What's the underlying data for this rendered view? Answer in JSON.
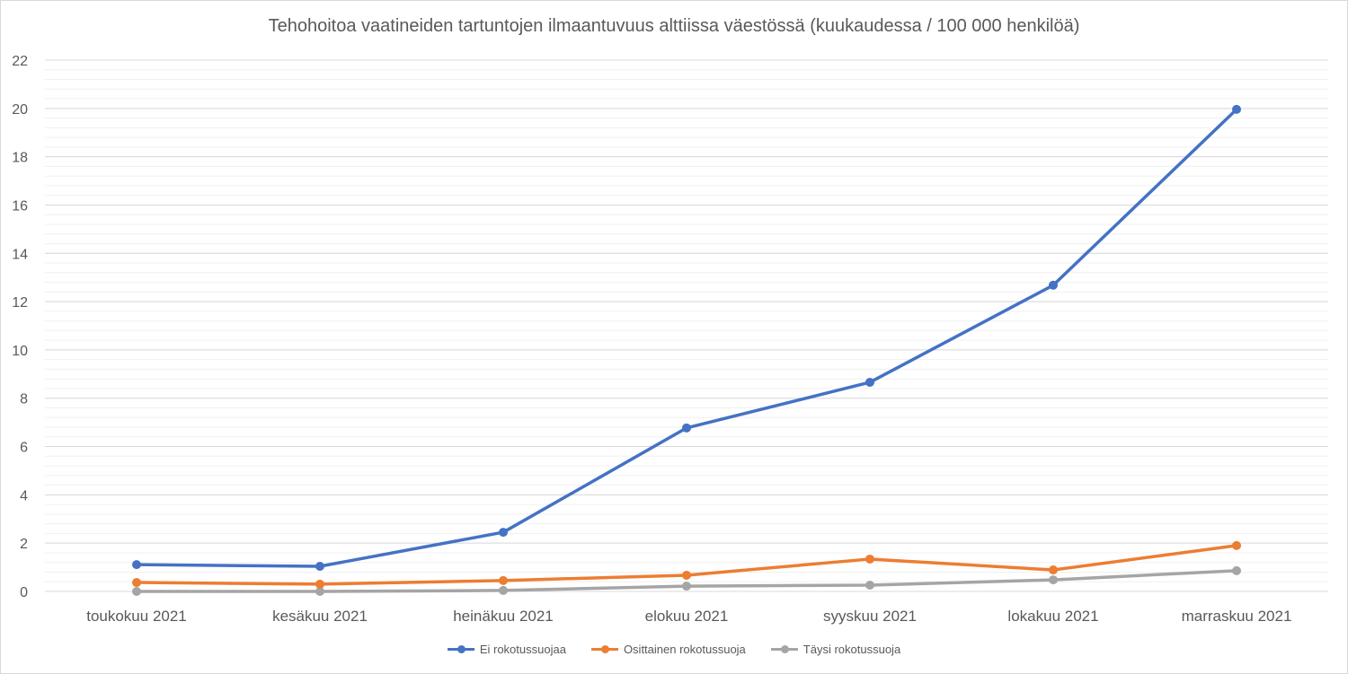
{
  "chart_data": {
    "type": "line",
    "title": "Tehohoitoa vaatineiden tartuntojen ilmaantuvuus alttiissa väestössä (kuukaudessa / 100 000 henkilöä)",
    "categories": [
      "toukokuu 2021",
      "kesäkuu 2021",
      "heinäkuu 2021",
      "elokuu 2021",
      "syyskuu 2021",
      "lokakuu 2021",
      "marraskuu 2021"
    ],
    "ylim": [
      0,
      22
    ],
    "yticks": [
      0,
      2,
      4,
      6,
      8,
      10,
      12,
      14,
      16,
      18,
      20,
      22
    ],
    "grid": true,
    "minor_grid_step": 0.4,
    "legend_position": "bottom",
    "series": [
      {
        "name": "Ei rokotussuojaa",
        "color": "#4472c4",
        "values": [
          1.11,
          1.04,
          2.45,
          6.77,
          8.66,
          12.68,
          19.96
        ]
      },
      {
        "name": "Osittainen rokotussuoja",
        "color": "#ed7d31",
        "values": [
          0.37,
          0.3,
          0.45,
          0.67,
          1.34,
          0.89,
          1.9
        ]
      },
      {
        "name": "Täysi rokotussuoja",
        "color": "#a5a5a5",
        "values": [
          0.0,
          0.0,
          0.04,
          0.22,
          0.26,
          0.48,
          0.86
        ]
      }
    ]
  }
}
